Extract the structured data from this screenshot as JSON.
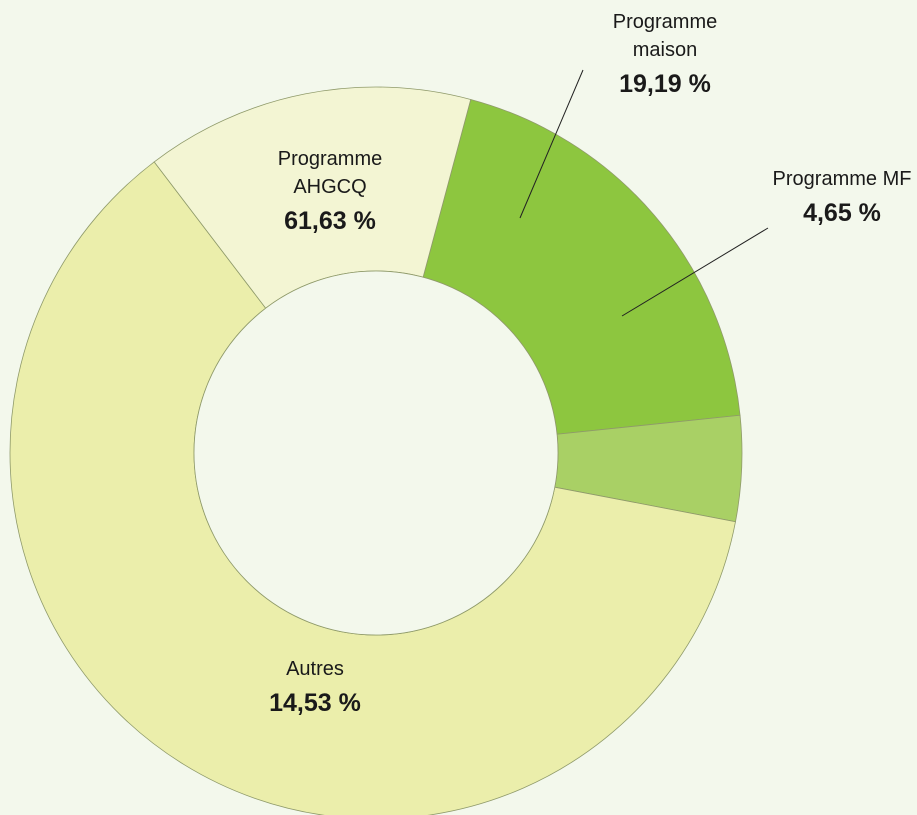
{
  "chart_data": {
    "type": "donut",
    "categories": [
      "Programme maison",
      "Programme MF",
      "Programme AHGCQ",
      "Autres"
    ],
    "values": [
      19.19,
      4.65,
      61.63,
      14.53
    ],
    "value_labels": [
      "19,19 %",
      "4,65 %",
      "61,63 %",
      "14,53 %"
    ],
    "colors": [
      "#8dc63f",
      "#a9d065",
      "#ebeeab",
      "#f3f5d3"
    ]
  }
}
